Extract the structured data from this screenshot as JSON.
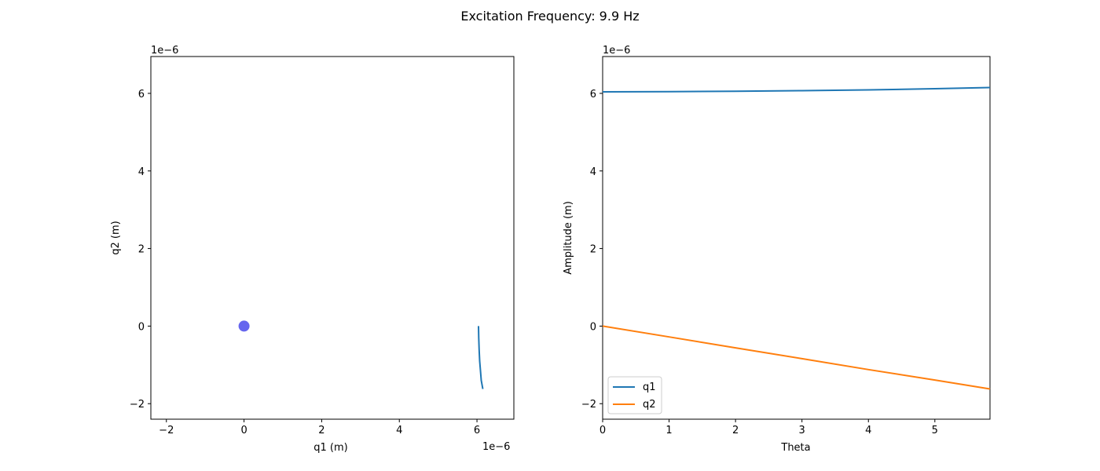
{
  "figure": {
    "title": "Excitation Frequency: 9.9 Hz"
  },
  "chart_data": [
    {
      "type": "scatter",
      "title": "",
      "xlabel": "q1 (m)",
      "ylabel": "q2 (m)",
      "x_offset_label": "1e−6",
      "y_offset_label": "1e−6",
      "xlim": [
        -2.4e-06,
        6.95e-06
      ],
      "ylim": [
        -2.4e-06,
        6.95e-06
      ],
      "x_ticks": [
        -2e-06,
        0,
        2e-06,
        4e-06,
        6e-06
      ],
      "x_tick_labels": [
        "−2",
        "0",
        "2",
        "4",
        "6"
      ],
      "y_ticks": [
        -2e-06,
        0,
        2e-06,
        4e-06,
        6e-06
      ],
      "y_tick_labels": [
        "−2",
        "0",
        "2",
        "4",
        "6"
      ],
      "grid": false,
      "marker": {
        "x": 0,
        "y": 0,
        "color": "#6666ee"
      },
      "series": [
        {
          "color": "#1f77b4",
          "x": [
            6.04e-06,
            6.045e-06,
            6.055e-06,
            6.07e-06,
            6.09e-06,
            6.11e-06,
            6.15e-06
          ],
          "y": [
            0,
            -3e-07,
            -6e-07,
            -9e-07,
            -1.15e-06,
            -1.4e-06,
            -1.62e-06
          ]
        }
      ]
    },
    {
      "type": "line",
      "title": "",
      "xlabel": "Theta",
      "ylabel": "Amplitude (m)",
      "y_offset_label": "1e−6",
      "xlim": [
        0,
        5.83
      ],
      "ylim": [
        -2.4e-06,
        6.95e-06
      ],
      "x_ticks": [
        0,
        1,
        2,
        3,
        4,
        5
      ],
      "x_tick_labels": [
        "0",
        "1",
        "2",
        "3",
        "4",
        "5"
      ],
      "y_ticks": [
        -2e-06,
        0,
        2e-06,
        4e-06,
        6e-06
      ],
      "y_tick_labels": [
        "−2",
        "0",
        "2",
        "4",
        "6"
      ],
      "grid": false,
      "legend": "lower-left",
      "series": [
        {
          "name": "q1",
          "color": "#1f77b4",
          "x": [
            0,
            1,
            2,
            3,
            4,
            5,
            5.83
          ],
          "y": [
            6.04e-06,
            6.045e-06,
            6.055e-06,
            6.07e-06,
            6.09e-06,
            6.12e-06,
            6.15e-06
          ]
        },
        {
          "name": "q2",
          "color": "#ff7f0e",
          "x": [
            0,
            1,
            2,
            3,
            4,
            5,
            5.83
          ],
          "y": [
            0,
            -2.8e-07,
            -5.6e-07,
            -8.4e-07,
            -1.12e-06,
            -1.39e-06,
            -1.62e-06
          ]
        }
      ]
    }
  ]
}
